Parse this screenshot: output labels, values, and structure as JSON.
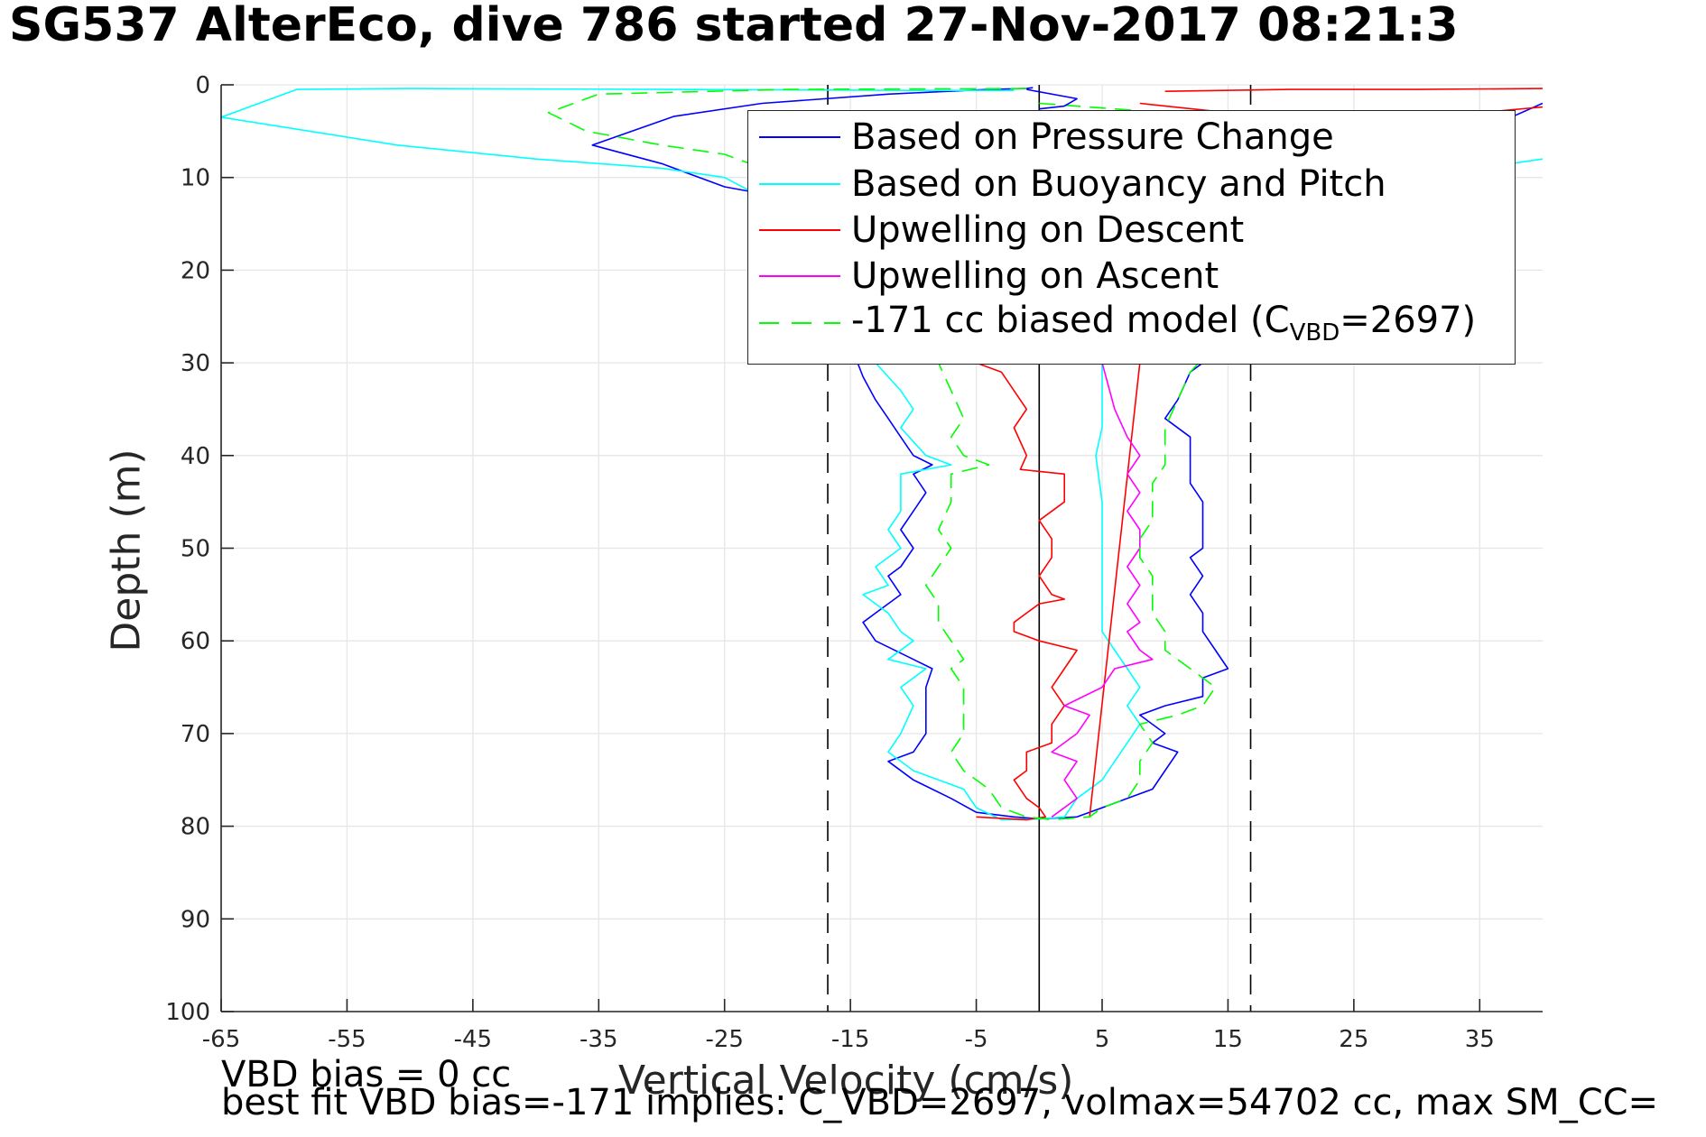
{
  "title": "SG537 AlterEco, dive 786 started 27-Nov-2017 08:21:3",
  "notes": {
    "line1": "VBD bias = 0 cc",
    "line2": "best fit VBD bias=-171 implies: C_VBD=2697, volmax=54702 cc, max SM_CC="
  },
  "legend": {
    "items": [
      {
        "label": "Based on Pressure Change",
        "color": "#0000ff",
        "dash": false
      },
      {
        "label": "Based on Buoyancy and Pitch",
        "color": "#00ffff",
        "dash": false
      },
      {
        "label": "Upwelling on Descent",
        "color": "#ff0000",
        "dash": false
      },
      {
        "label": "Upwelling on Ascent",
        "color": "#ff00ff",
        "dash": false
      },
      {
        "label_pre": "-171 cc biased model (C",
        "label_sub": "VBD",
        "label_post": "=2697)",
        "color": "#00ff00",
        "dash": true
      }
    ]
  },
  "chart_data": {
    "type": "line",
    "title": "SG537 AlterEco, dive 786 started 27-Nov-2017 08:21:3",
    "xlabel": "Vertical Velocity (cm/s)",
    "ylabel": "Depth (m)",
    "xlim": [
      -65,
      40
    ],
    "ylim": [
      0,
      100
    ],
    "y_reversed": true,
    "grid": true,
    "legend_position": "top-right",
    "xticks": [
      -65,
      -55,
      -45,
      -35,
      -25,
      -15,
      -5,
      5,
      15,
      25,
      35
    ],
    "yticks": [
      0,
      10,
      20,
      30,
      40,
      50,
      60,
      70,
      80,
      90,
      100
    ],
    "reference_lines": [
      {
        "x": 0,
        "style": "solid",
        "color": "#000000"
      },
      {
        "x": -16.8,
        "style": "dashed",
        "color": "#000000"
      },
      {
        "x": 16.8,
        "style": "dashed",
        "color": "#000000"
      }
    ],
    "series": [
      {
        "name": "Based on Pressure Change",
        "color": "#0000ff",
        "dash": false,
        "points": [
          [
            -0.5,
            0.3
          ],
          [
            -1,
            0.4
          ],
          [
            -4,
            0.5
          ],
          [
            -12,
            1
          ],
          [
            -22,
            2
          ],
          [
            -29,
            3.4
          ],
          [
            -35.5,
            6.5
          ],
          [
            -30,
            8.5
          ],
          [
            -25,
            11
          ],
          [
            -23,
            11.5
          ],
          [
            -17,
            20
          ],
          [
            -15,
            28
          ],
          [
            -14,
            31.5
          ],
          [
            -13,
            34
          ],
          [
            -12,
            36
          ],
          [
            -11,
            38
          ],
          [
            -10,
            40
          ],
          [
            -8.5,
            41
          ],
          [
            -10,
            42
          ],
          [
            -9,
            44
          ],
          [
            -10,
            46
          ],
          [
            -11,
            48
          ],
          [
            -10,
            50
          ],
          [
            -11,
            52
          ],
          [
            -12,
            53
          ],
          [
            -11,
            55
          ],
          [
            -13,
            57
          ],
          [
            -14,
            58
          ],
          [
            -13,
            60
          ],
          [
            -10,
            62
          ],
          [
            -8.5,
            63
          ],
          [
            -9,
            65
          ],
          [
            -9,
            67
          ],
          [
            -9,
            70
          ],
          [
            -10,
            72
          ],
          [
            -12,
            73
          ],
          [
            -10,
            75
          ],
          [
            -7,
            77
          ],
          [
            -5,
            78.5
          ],
          [
            -2,
            79
          ],
          [
            0,
            79.2
          ],
          [
            3,
            79
          ],
          [
            5,
            78
          ],
          [
            7,
            77
          ],
          [
            9,
            76
          ],
          [
            10,
            74
          ],
          [
            11,
            72
          ],
          [
            9,
            71
          ],
          [
            10,
            70
          ],
          [
            8,
            68
          ],
          [
            10,
            67
          ],
          [
            13,
            66
          ],
          [
            13,
            64
          ],
          [
            15,
            63
          ],
          [
            14,
            61
          ],
          [
            13,
            59
          ],
          [
            13,
            57
          ],
          [
            12,
            55
          ],
          [
            13,
            53
          ],
          [
            12,
            51
          ],
          [
            13,
            50
          ],
          [
            13,
            47
          ],
          [
            13,
            45
          ],
          [
            12,
            43
          ],
          [
            12,
            41
          ],
          [
            12,
            38
          ],
          [
            10,
            36
          ],
          [
            11,
            34
          ],
          [
            12,
            31
          ],
          [
            14,
            29
          ],
          [
            16,
            25
          ],
          [
            20,
            20
          ],
          [
            25,
            15
          ],
          [
            30,
            10
          ],
          [
            35,
            5
          ],
          [
            40,
            2
          ]
        ]
      },
      {
        "name": "Based on Buoyancy and Pitch",
        "color": "#00ffff",
        "dash": false,
        "points": [
          [
            -2,
            0.6
          ],
          [
            -10,
            0.6
          ],
          [
            -30,
            0.5
          ],
          [
            -50,
            0.4
          ],
          [
            -59,
            0.5
          ],
          [
            -65,
            3.5
          ],
          [
            -51,
            6.5
          ],
          [
            -40,
            8
          ],
          [
            -30,
            9
          ],
          [
            -25,
            10
          ],
          [
            -18,
            15
          ],
          [
            -14,
            25
          ],
          [
            -13,
            30
          ],
          [
            -11,
            33
          ],
          [
            -10,
            35
          ],
          [
            -11,
            37
          ],
          [
            -9,
            40
          ],
          [
            -7,
            41
          ],
          [
            -11,
            42
          ],
          [
            -11,
            44
          ],
          [
            -11,
            46
          ],
          [
            -12,
            48
          ],
          [
            -11,
            50
          ],
          [
            -13,
            52
          ],
          [
            -12,
            54
          ],
          [
            -14,
            55
          ],
          [
            -12,
            57
          ],
          [
            -11,
            59
          ],
          [
            -10,
            60
          ],
          [
            -12,
            62
          ],
          [
            -9,
            63
          ],
          [
            -11,
            65
          ],
          [
            -10,
            67
          ],
          [
            -11,
            70
          ],
          [
            -12,
            72
          ],
          [
            -10,
            74
          ],
          [
            -6,
            76
          ],
          [
            -5,
            78
          ],
          [
            -3,
            79.3
          ],
          [
            0,
            79.2
          ],
          [
            2,
            79
          ],
          [
            3,
            77
          ],
          [
            5,
            75
          ],
          [
            6,
            73
          ],
          [
            7,
            71
          ],
          [
            8,
            69
          ],
          [
            7,
            67
          ],
          [
            8,
            65
          ],
          [
            7,
            63
          ],
          [
            6,
            61
          ],
          [
            5,
            59
          ],
          [
            5,
            55
          ],
          [
            5,
            50
          ],
          [
            5,
            45
          ],
          [
            4.5,
            40
          ],
          [
            5,
            37
          ],
          [
            5,
            35
          ],
          [
            5,
            33
          ],
          [
            5,
            30
          ],
          [
            10,
            20
          ],
          [
            20,
            12
          ],
          [
            40,
            8
          ]
        ]
      },
      {
        "name": "Upwelling on Descent",
        "color": "#ff0000",
        "dash": false,
        "points": [
          [
            -5,
            30
          ],
          [
            -3,
            31
          ],
          [
            -2,
            33
          ],
          [
            -1,
            35
          ],
          [
            -2,
            37
          ],
          [
            -1,
            40
          ],
          [
            -1.5,
            41.5
          ],
          [
            2,
            42
          ],
          [
            2,
            45
          ],
          [
            0,
            47
          ],
          [
            1,
            49
          ],
          [
            1,
            51
          ],
          [
            0,
            53
          ],
          [
            1,
            55
          ],
          [
            2,
            55.5
          ],
          [
            0,
            56
          ],
          [
            -1,
            57
          ],
          [
            -2,
            58
          ],
          [
            -2,
            59
          ],
          [
            0,
            60
          ],
          [
            3,
            61
          ],
          [
            2,
            63
          ],
          [
            1,
            65
          ],
          [
            2,
            67
          ],
          [
            1,
            69
          ],
          [
            1,
            71
          ],
          [
            -1,
            72
          ],
          [
            -1,
            74
          ],
          [
            -2,
            75
          ],
          [
            -1,
            77
          ],
          [
            0,
            78
          ],
          [
            0.5,
            79
          ],
          [
            -1,
            79.3
          ],
          [
            -5,
            79
          ]
        ]
      },
      {
        "name": "Upwelling on Descent (fit)",
        "color": "#ff0000",
        "dash": false,
        "points": [
          [
            8,
            30
          ],
          [
            4,
            79
          ]
        ]
      },
      {
        "name": "Upwelling on Descent (surface)",
        "color": "#ff0000",
        "dash": false,
        "points": [
          [
            10,
            0.7
          ],
          [
            20,
            0.5
          ],
          [
            30,
            0.5
          ],
          [
            40,
            0.4
          ]
        ]
      },
      {
        "name": "Upwelling on Descent (surface 2)",
        "color": "#ff0000",
        "dash": false,
        "points": [
          [
            8,
            2
          ],
          [
            15,
            3
          ],
          [
            25,
            3.5
          ],
          [
            35,
            3
          ],
          [
            40,
            2.4
          ]
        ]
      },
      {
        "name": "Upwelling on Ascent",
        "color": "#ff00ff",
        "dash": false,
        "points": [
          [
            5,
            30
          ],
          [
            6,
            35
          ],
          [
            7,
            38
          ],
          [
            8,
            40
          ],
          [
            7,
            42
          ],
          [
            8,
            44
          ],
          [
            7,
            46
          ],
          [
            8,
            48
          ],
          [
            8,
            50
          ],
          [
            7,
            52
          ],
          [
            8,
            54
          ],
          [
            7,
            56
          ],
          [
            8,
            58
          ],
          [
            7,
            59
          ],
          [
            8,
            61
          ],
          [
            9,
            62
          ],
          [
            6,
            63
          ],
          [
            5,
            65
          ],
          [
            2,
            67
          ],
          [
            4,
            68
          ],
          [
            3,
            70
          ],
          [
            1,
            72
          ],
          [
            3,
            73
          ],
          [
            2,
            75
          ],
          [
            3,
            77
          ],
          [
            1,
            79
          ]
        ]
      },
      {
        "name": "-171 cc biased model",
        "color": "#00ff00",
        "dash": true,
        "points": [
          [
            -1,
            0.4
          ],
          [
            -20,
            0.5
          ],
          [
            -35,
            1
          ],
          [
            -39,
            3
          ],
          [
            -36,
            5
          ],
          [
            -30,
            6.5
          ],
          [
            -25,
            7.5
          ],
          [
            -23,
            8.5
          ],
          [
            -17,
            15
          ],
          [
            -12,
            25
          ],
          [
            -8,
            30
          ],
          [
            -7,
            33
          ],
          [
            -6,
            36
          ],
          [
            -7,
            38
          ],
          [
            -6,
            40
          ],
          [
            -4,
            41
          ],
          [
            -7,
            42
          ],
          [
            -7,
            45
          ],
          [
            -8,
            48
          ],
          [
            -7,
            50
          ],
          [
            -8,
            52
          ],
          [
            -9,
            54
          ],
          [
            -8,
            56
          ],
          [
            -8,
            58
          ],
          [
            -7,
            60
          ],
          [
            -6,
            62
          ],
          [
            -7,
            63
          ],
          [
            -6,
            65
          ],
          [
            -6,
            67
          ],
          [
            -6,
            70
          ],
          [
            -7,
            72
          ],
          [
            -6,
            74
          ],
          [
            -4,
            76
          ],
          [
            -3,
            78
          ],
          [
            -1,
            79
          ],
          [
            1,
            79.3
          ],
          [
            4,
            79
          ],
          [
            5,
            78
          ],
          [
            7,
            77
          ],
          [
            8,
            75
          ],
          [
            8,
            73
          ],
          [
            9,
            71
          ],
          [
            8,
            69
          ],
          [
            11,
            68
          ],
          [
            13,
            67
          ],
          [
            14,
            65
          ],
          [
            12,
            63
          ],
          [
            10,
            61
          ],
          [
            10,
            59
          ],
          [
            9,
            57
          ],
          [
            9,
            55
          ],
          [
            9,
            53
          ],
          [
            8,
            51
          ],
          [
            8,
            49
          ],
          [
            9,
            47
          ],
          [
            9,
            45
          ],
          [
            9,
            43
          ],
          [
            10,
            41
          ],
          [
            10,
            39
          ],
          [
            10,
            37
          ],
          [
            11,
            34
          ],
          [
            12,
            31
          ],
          [
            14,
            28
          ],
          [
            15,
            25
          ],
          [
            16,
            22
          ]
        ]
      },
      {
        "name": "-171 cc biased model (surface)",
        "color": "#00ff00",
        "dash": true,
        "points": [
          [
            0,
            2
          ],
          [
            5,
            2.5
          ],
          [
            10,
            3
          ],
          [
            15,
            3
          ]
        ]
      },
      {
        "name": "Based on Pressure Change (surface)",
        "color": "#0000ff",
        "dash": false,
        "points": [
          [
            -1,
            0.5
          ],
          [
            3,
            1.5
          ],
          [
            2,
            2.3
          ],
          [
            0,
            2.6
          ]
        ]
      }
    ]
  }
}
